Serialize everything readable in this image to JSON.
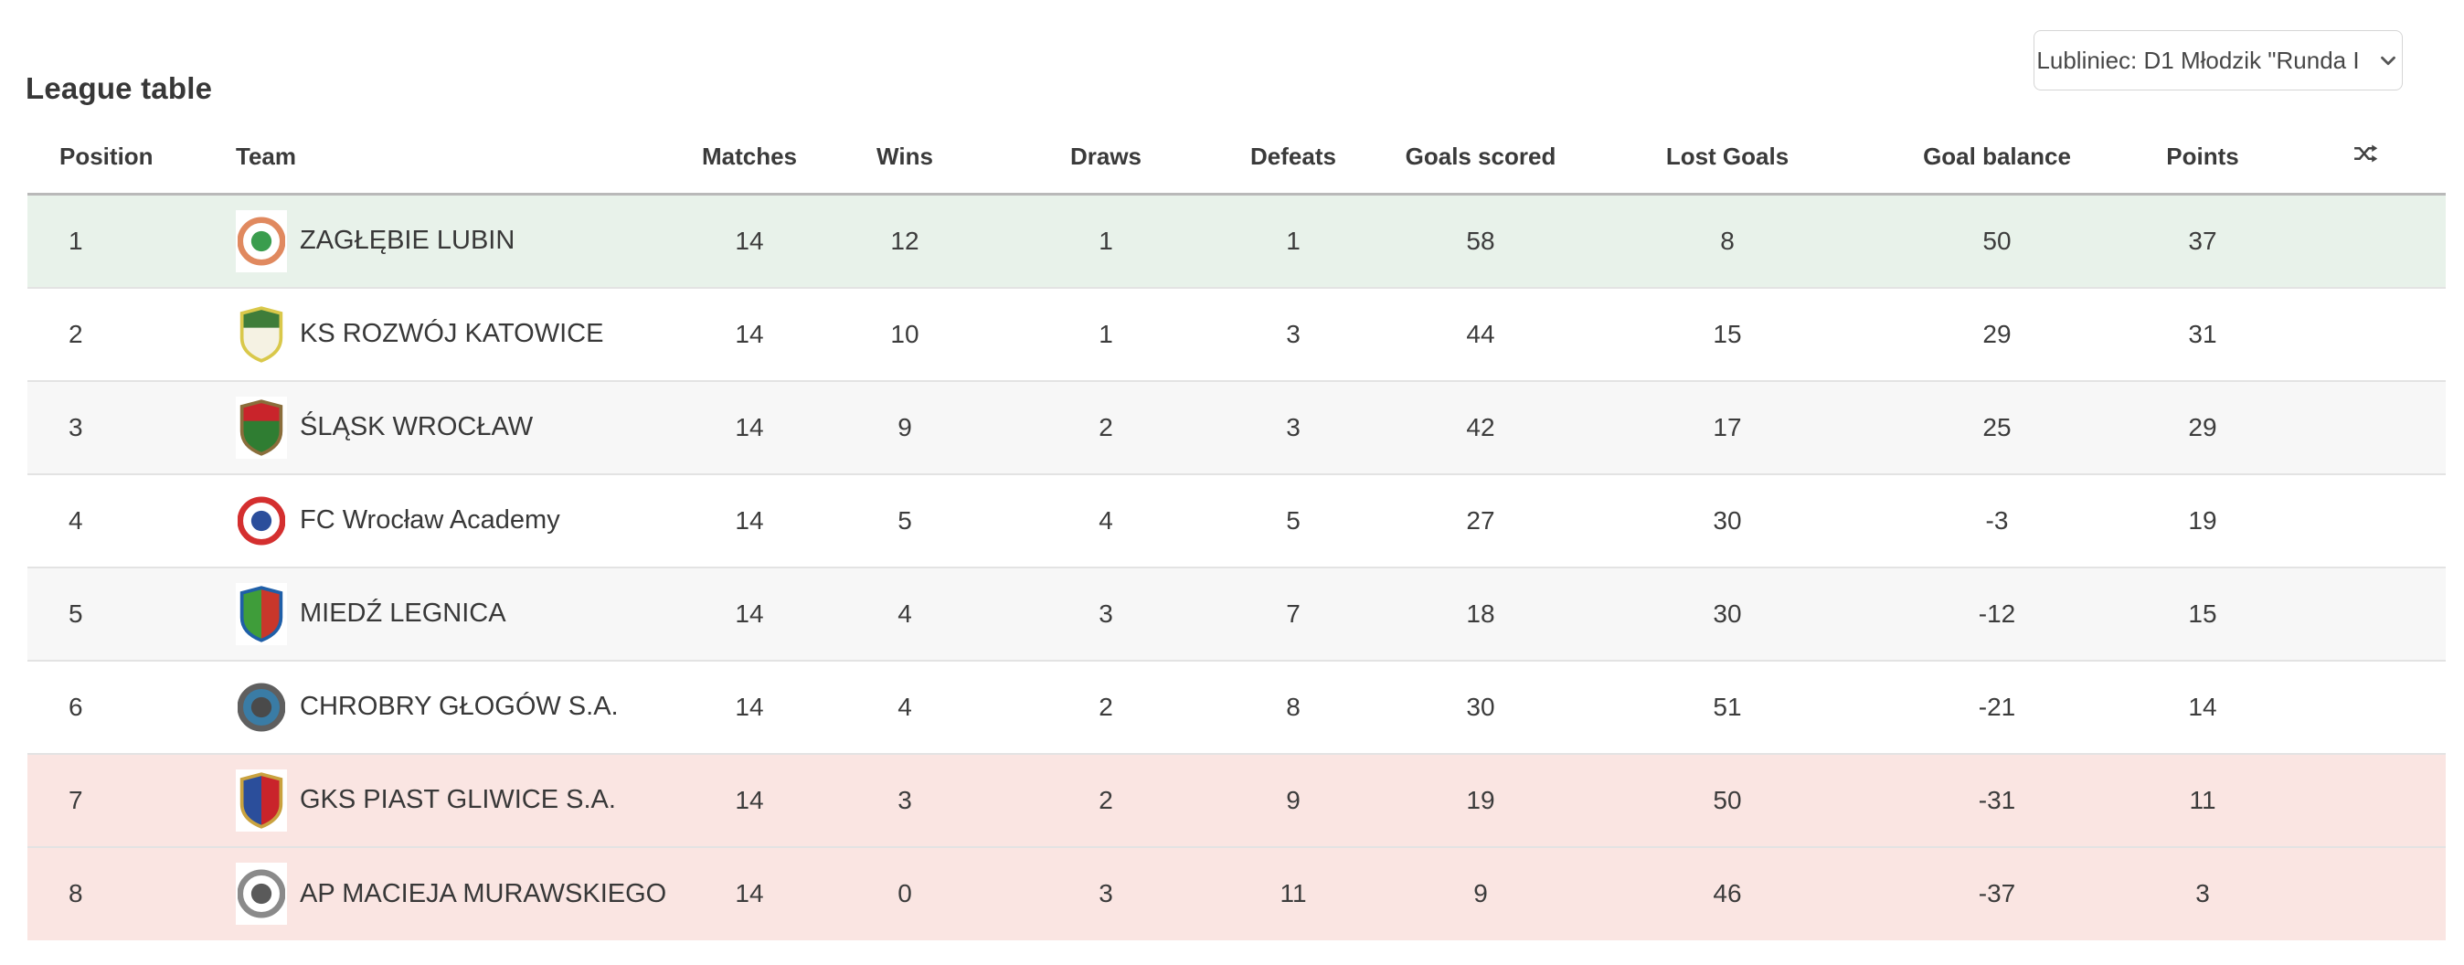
{
  "page": {
    "title": "League table"
  },
  "selector": {
    "value": "Lubliniec: D1 Młodzik \"Runda I"
  },
  "colors": {
    "promotion_row": "#e8f2ea",
    "relegation_row": "#fae5e2",
    "alt_row": "#f7f7f7",
    "header_border": "#b9b9b9",
    "row_border": "#e3e3e3",
    "text": "#3c3c3c",
    "select_border": "#d5d5d5"
  },
  "table": {
    "columns": [
      "Position",
      "Team",
      "Matches",
      "Wins",
      "Draws",
      "Defeats",
      "Goals scored",
      "Lost Goals",
      "Goal balance",
      "Points"
    ],
    "sort_icon": "shuffle",
    "row_keys": [
      "position",
      "team",
      "matches",
      "wins",
      "draws",
      "defeats",
      "goals_scored",
      "lost_goals",
      "goal_balance",
      "points"
    ],
    "rows": [
      {
        "position": "1",
        "team": "ZAGŁĘBIE LUBIN",
        "matches": "14",
        "wins": "12",
        "draws": "1",
        "defeats": "1",
        "goals_scored": "58",
        "lost_goals": "8",
        "goal_balance": "50",
        "points": "37",
        "zone": "promotion",
        "crest": {
          "shape": "circle",
          "colors": [
            "#e0895f",
            "#ffffff",
            "#3a9d4e"
          ]
        }
      },
      {
        "position": "2",
        "team": "KS ROZWÓJ KATOWICE",
        "matches": "14",
        "wins": "10",
        "draws": "1",
        "defeats": "3",
        "goals_scored": "44",
        "lost_goals": "15",
        "goal_balance": "29",
        "points": "31",
        "zone": "",
        "crest": {
          "shape": "shield",
          "split": "horizontal",
          "colors": [
            "#d9c84a",
            "#3f7d3a",
            "#f5f2e3"
          ]
        }
      },
      {
        "position": "3",
        "team": "ŚLĄSK WROCŁAW",
        "matches": "14",
        "wins": "9",
        "draws": "2",
        "defeats": "3",
        "goals_scored": "42",
        "lost_goals": "17",
        "goal_balance": "25",
        "points": "29",
        "zone": "",
        "crest": {
          "shape": "shield",
          "split": "horizontal",
          "colors": [
            "#8a6d3b",
            "#c9242b",
            "#2f7d32"
          ]
        }
      },
      {
        "position": "4",
        "team": "FC Wrocław Academy",
        "matches": "14",
        "wins": "5",
        "draws": "4",
        "defeats": "5",
        "goals_scored": "27",
        "lost_goals": "30",
        "goal_balance": "-3",
        "points": "19",
        "zone": "",
        "crest": {
          "shape": "circle",
          "colors": [
            "#d42f2f",
            "#ffffff",
            "#2b4e9b"
          ]
        }
      },
      {
        "position": "5",
        "team": "MIEDŹ LEGNICA",
        "matches": "14",
        "wins": "4",
        "draws": "3",
        "defeats": "7",
        "goals_scored": "18",
        "lost_goals": "30",
        "goal_balance": "-12",
        "points": "15",
        "zone": "",
        "crest": {
          "shape": "shield",
          "split": "vertical",
          "colors": [
            "#1f5fa8",
            "#3f9d3a",
            "#c9372b"
          ]
        }
      },
      {
        "position": "6",
        "team": "CHROBRY GŁOGÓW S.A.",
        "matches": "14",
        "wins": "4",
        "draws": "2",
        "defeats": "8",
        "goals_scored": "30",
        "lost_goals": "51",
        "goal_balance": "-21",
        "points": "14",
        "zone": "",
        "crest": {
          "shape": "circle",
          "colors": [
            "#5f5f5f",
            "#3a7ca5",
            "#4a4a4a"
          ]
        }
      },
      {
        "position": "7",
        "team": "GKS PIAST GLIWICE S.A.",
        "matches": "14",
        "wins": "3",
        "draws": "2",
        "defeats": "9",
        "goals_scored": "19",
        "lost_goals": "50",
        "goal_balance": "-31",
        "points": "11",
        "zone": "relegation",
        "crest": {
          "shape": "shield",
          "split": "vertical",
          "colors": [
            "#c9a23f",
            "#2b4e9b",
            "#c9242b"
          ]
        }
      },
      {
        "position": "8",
        "team": "AP MACIEJA MURAWSKIEGO",
        "matches": "14",
        "wins": "0",
        "draws": "3",
        "defeats": "11",
        "goals_scored": "9",
        "lost_goals": "46",
        "goal_balance": "-37",
        "points": "3",
        "zone": "relegation",
        "crest": {
          "shape": "circle",
          "colors": [
            "#8a8a8a",
            "#ffffff",
            "#5a5a5a"
          ]
        }
      }
    ]
  }
}
